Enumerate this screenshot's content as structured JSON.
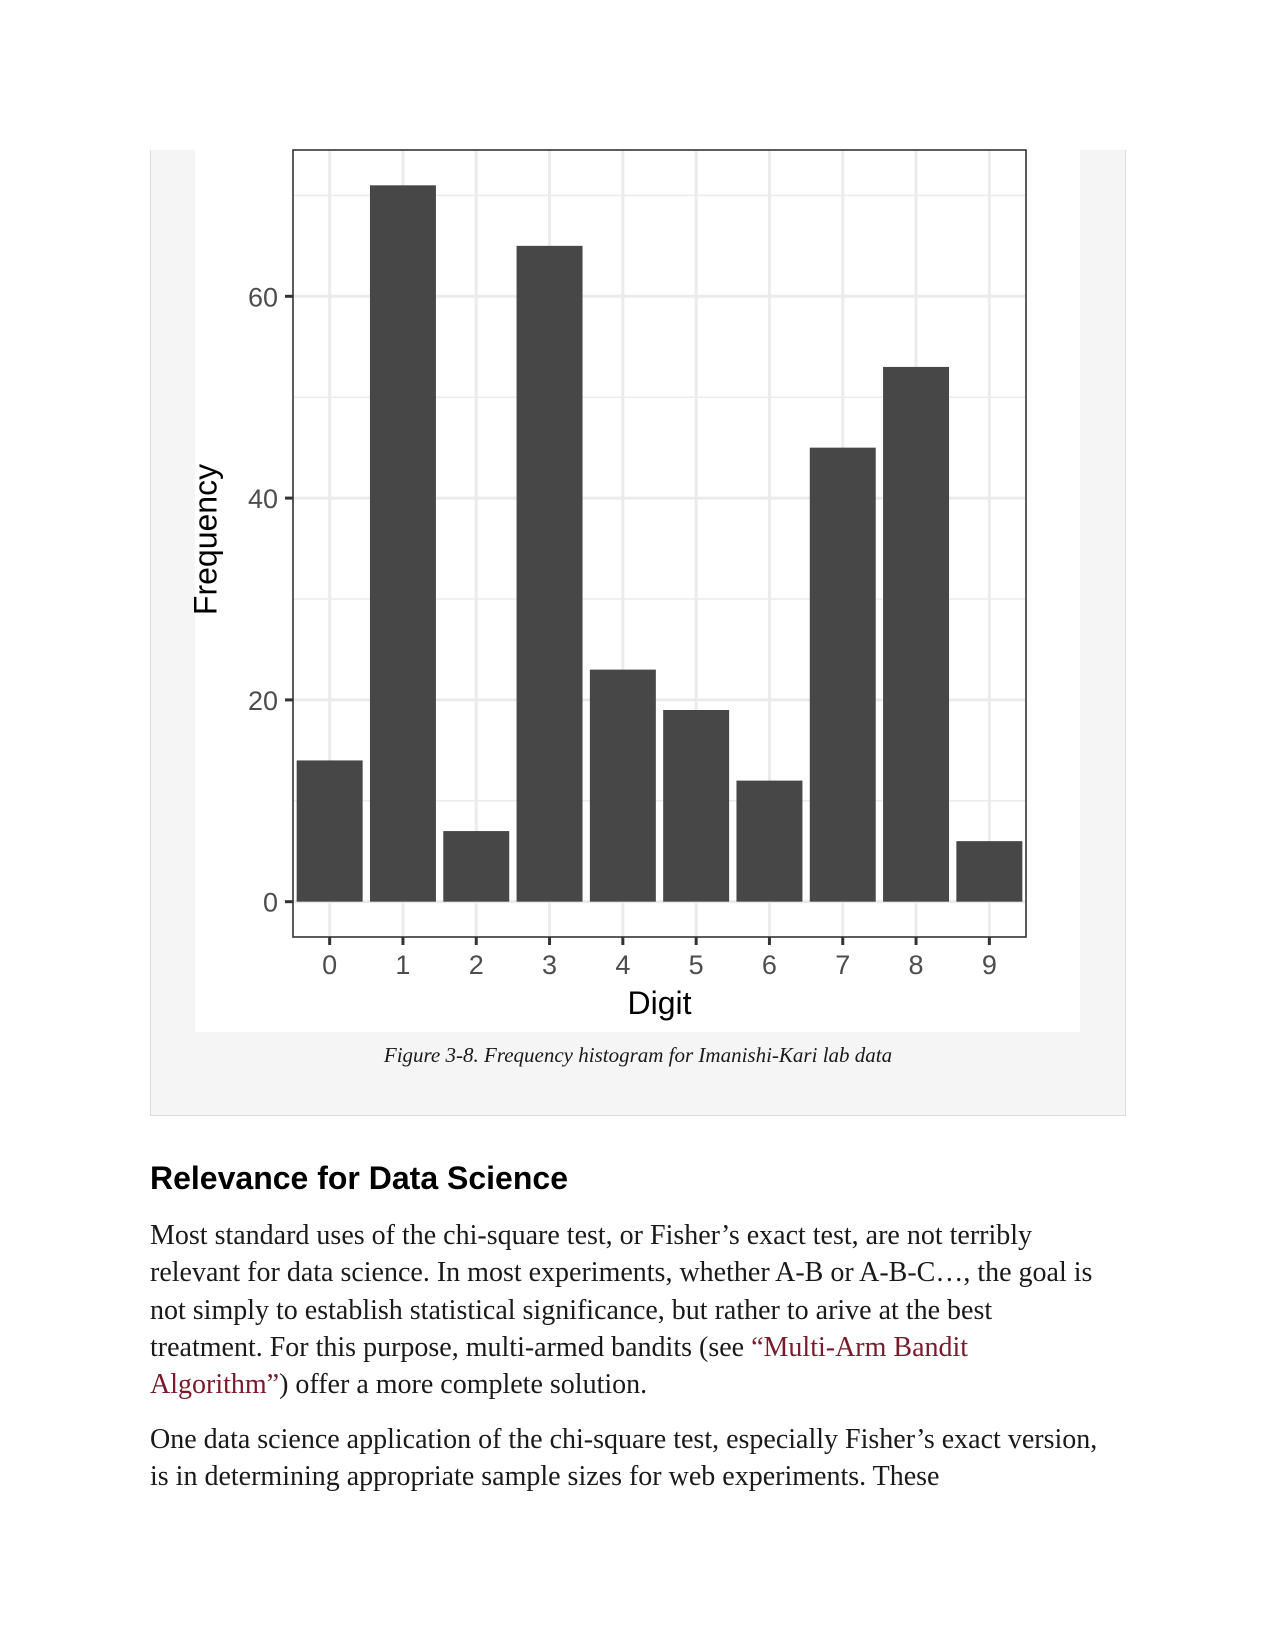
{
  "figure": {
    "caption": "Figure 3-8. Frequency histogram for Imanishi-Kari lab data"
  },
  "chart_data": {
    "type": "bar",
    "categories": [
      "0",
      "1",
      "2",
      "3",
      "4",
      "5",
      "6",
      "7",
      "8",
      "9"
    ],
    "values": [
      14,
      71,
      7,
      65,
      23,
      19,
      12,
      45,
      53,
      6
    ],
    "xlabel": "Digit",
    "ylabel": "Frequency",
    "ylim": [
      -3.5,
      74.5
    ],
    "yticks": [
      0,
      20,
      40,
      60
    ],
    "grid": true,
    "bar_color": "#474747",
    "grid_color": "#ebebeb",
    "panel_border_color": "#333333",
    "tick_label_color": "#4d4d4d"
  },
  "section": {
    "heading": "Relevance for Data Science",
    "para1_before_link": "Most standard uses of the chi-square test, or Fisher’s exact test, are not terribly relevant for data science. In most experiments, whether A-B or A-B-C…, the goal is not simply to establish statistical significance, but rather to arive at the best treatment. For this purpose, multi-armed bandits (see ",
    "para1_link": "“Multi-Arm Bandit Algorithm”",
    "para1_after_link": ") offer a more complete solution.",
    "para2": "One data science application of the chi-square test, especially Fisher’s exact version, is in determining appropriate sample sizes for web experiments. These"
  },
  "colors": {
    "link": "#7a1a2a",
    "figure_background": "#f5f5f5"
  }
}
